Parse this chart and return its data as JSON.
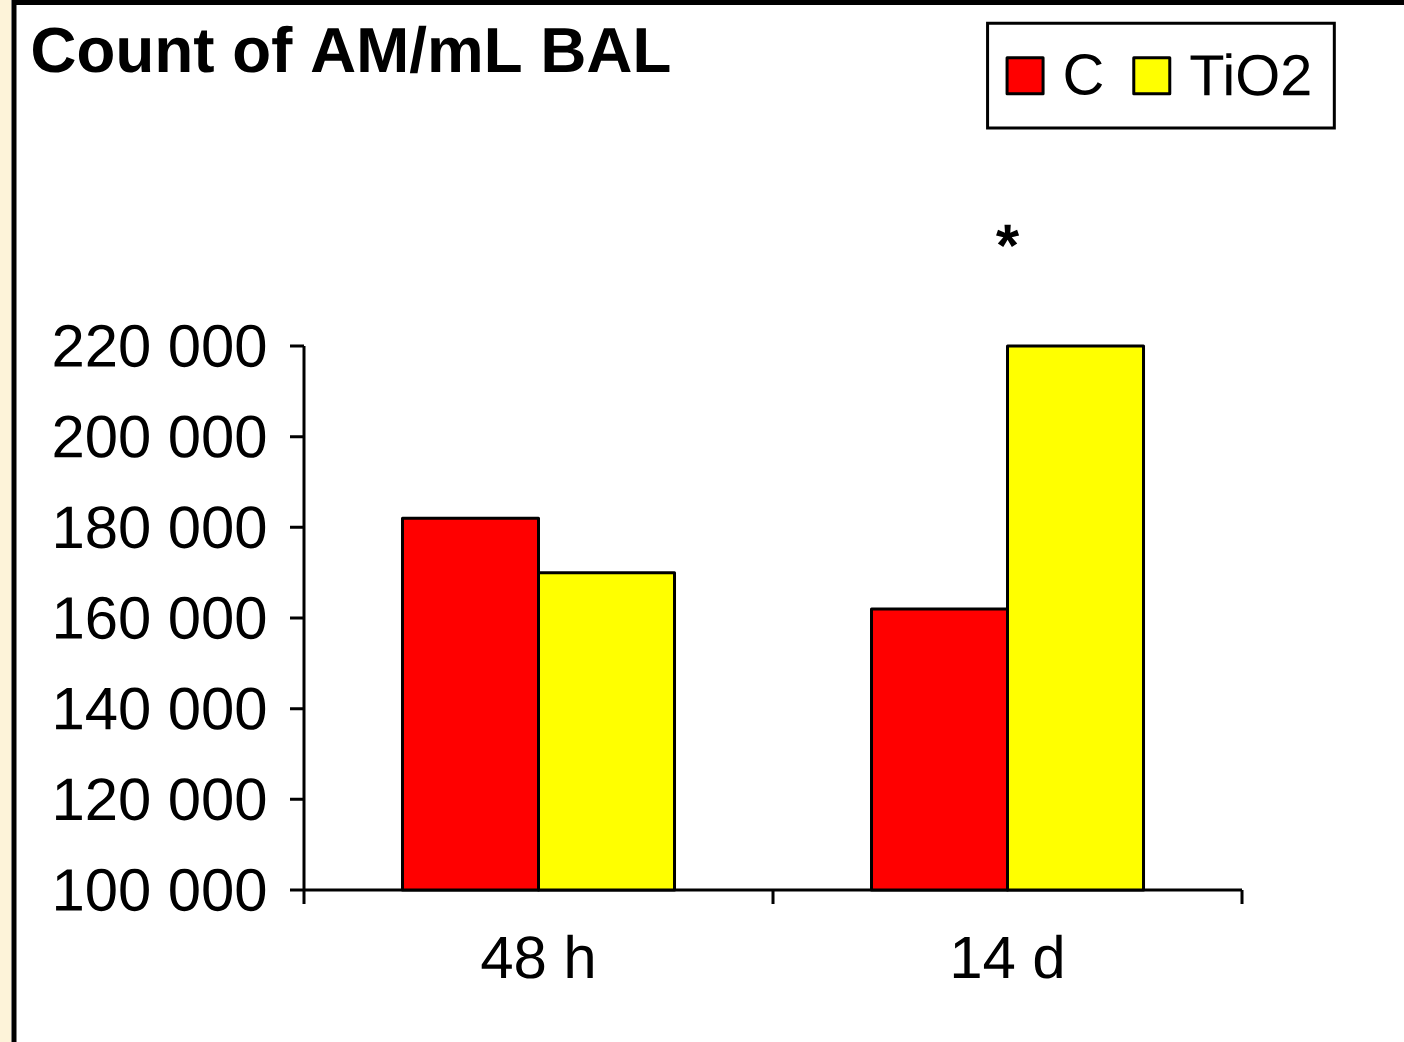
{
  "chart_data": {
    "type": "bar",
    "title": "Count of AM/mL BAL",
    "categories": [
      "48 h",
      "14 d"
    ],
    "series": [
      {
        "name": "C",
        "color": "#ff0000",
        "values": [
          182000,
          162000
        ]
      },
      {
        "name": "TiO2",
        "color": "#ffff00",
        "values": [
          170000,
          220000
        ]
      }
    ],
    "ylim": [
      100000,
      220000
    ],
    "yticks": [
      {
        "value": 100000,
        "label": "100 000"
      },
      {
        "value": 120000,
        "label": "120 000"
      },
      {
        "value": 140000,
        "label": "140 000"
      },
      {
        "value": 160000,
        "label": "160 000"
      },
      {
        "value": 180000,
        "label": "180 000"
      },
      {
        "value": 200000,
        "label": "200 000"
      },
      {
        "value": 220000,
        "label": "220 000"
      }
    ],
    "legend": "top right",
    "annotations": [
      {
        "text": "*",
        "x": "14 d",
        "y": 220000
      }
    ]
  }
}
